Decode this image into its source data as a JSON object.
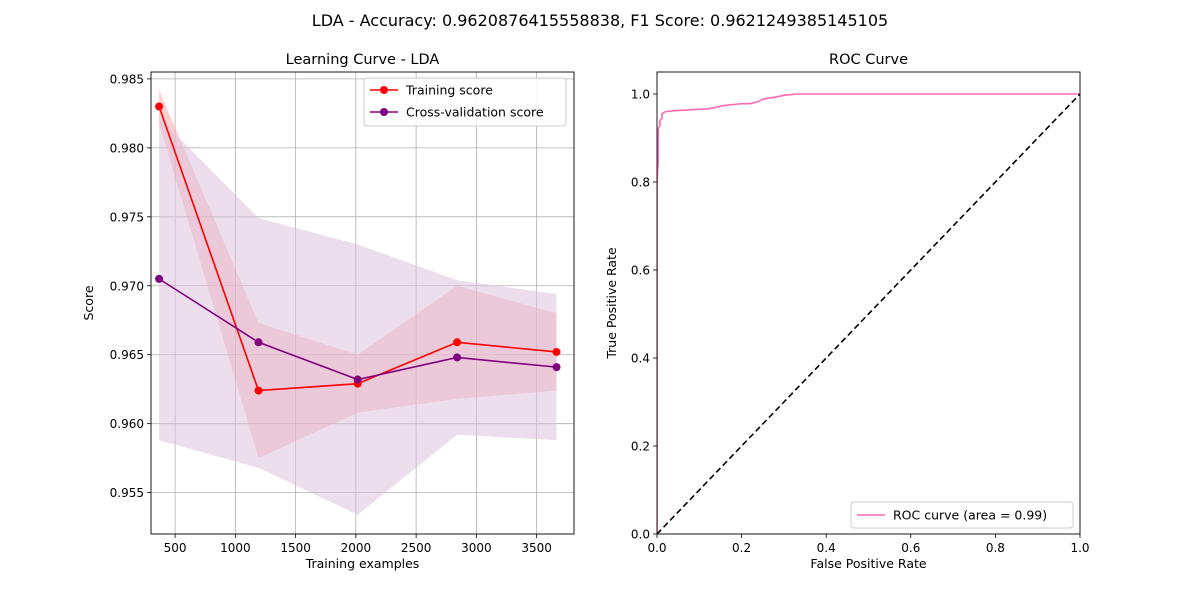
{
  "figure": {
    "suptitle": "LDA - Accuracy: 0.9620876415558838, F1 Score: 0.9621249385145105"
  },
  "chart_data": [
    {
      "type": "line",
      "title": "Learning Curve - LDA",
      "xlabel": "Training examples",
      "ylabel": "Score",
      "xlim": [
        300,
        3810
      ],
      "ylim": [
        0.952,
        0.9855
      ],
      "grid": true,
      "legend_position": "upper right",
      "xticks": [
        500,
        1000,
        1500,
        2000,
        2500,
        3000,
        3500
      ],
      "xtick_labels": [
        "500",
        "1000",
        "1500",
        "2000",
        "2500",
        "3000",
        "3500"
      ],
      "yticks": [
        0.955,
        0.96,
        0.965,
        0.97,
        0.975,
        0.98,
        0.985
      ],
      "ytick_labels": [
        "0.955",
        "0.960",
        "0.965",
        "0.970",
        "0.975",
        "0.980",
        "0.985"
      ],
      "x": [
        367,
        1192,
        2015,
        2840,
        3665
      ],
      "series": [
        {
          "name": "Training score",
          "color": "#ff0000",
          "band_color": "#ff9999",
          "values": [
            0.983,
            0.9624,
            0.9629,
            0.9659,
            0.9652
          ],
          "upper": [
            0.9842,
            0.9673,
            0.965,
            0.97,
            0.968
          ],
          "lower": [
            0.9818,
            0.9575,
            0.9608,
            0.9618,
            0.9624
          ]
        },
        {
          "name": "Cross-validation score",
          "color": "#800080",
          "band_color": "#dcc2df",
          "values": [
            0.9705,
            0.9659,
            0.9632,
            0.9648,
            0.9641
          ],
          "upper": [
            0.9822,
            0.9749,
            0.973,
            0.9704,
            0.9694
          ],
          "lower": [
            0.9588,
            0.9568,
            0.9534,
            0.9592,
            0.9588
          ]
        }
      ]
    },
    {
      "type": "line",
      "title": "ROC Curve",
      "xlabel": "False Positive Rate",
      "ylabel": "True Positive Rate",
      "xlim": [
        0,
        1
      ],
      "ylim": [
        0,
        1.05
      ],
      "grid": false,
      "legend_position": "lower right",
      "xticks": [
        0,
        0.2,
        0.4,
        0.6,
        0.8,
        1.0
      ],
      "xtick_labels": [
        "0.0",
        "0.2",
        "0.4",
        "0.6",
        "0.8",
        "1.0"
      ],
      "yticks": [
        0,
        0.2,
        0.4,
        0.6,
        0.8,
        1.0
      ],
      "ytick_labels": [
        "0.0",
        "0.2",
        "0.4",
        "0.6",
        "0.8",
        "1.0"
      ],
      "series": [
        {
          "name": "ROC curve (area = 0.99)",
          "color": "#ff69b4",
          "x": [
            0,
            0,
            0.003,
            0.003,
            0.007,
            0.007,
            0.012,
            0.012,
            0.02,
            0.04,
            0.06,
            0.09,
            0.12,
            0.14,
            0.16,
            0.19,
            0.2,
            0.22,
            0.24,
            0.25,
            0.26,
            0.28,
            0.3,
            0.32,
            0.33,
            0.5,
            0.8,
            1.0
          ],
          "y": [
            0,
            0.8,
            0.85,
            0.92,
            0.93,
            0.94,
            0.945,
            0.955,
            0.96,
            0.962,
            0.963,
            0.965,
            0.966,
            0.97,
            0.974,
            0.977,
            0.978,
            0.978,
            0.983,
            0.988,
            0.99,
            0.993,
            0.997,
            0.999,
            1.0,
            1.0,
            1.0,
            1.0
          ]
        },
        {
          "name": "",
          "color": "#000000",
          "dashed": true,
          "x": [
            0,
            1
          ],
          "y": [
            0,
            1
          ]
        }
      ]
    }
  ]
}
